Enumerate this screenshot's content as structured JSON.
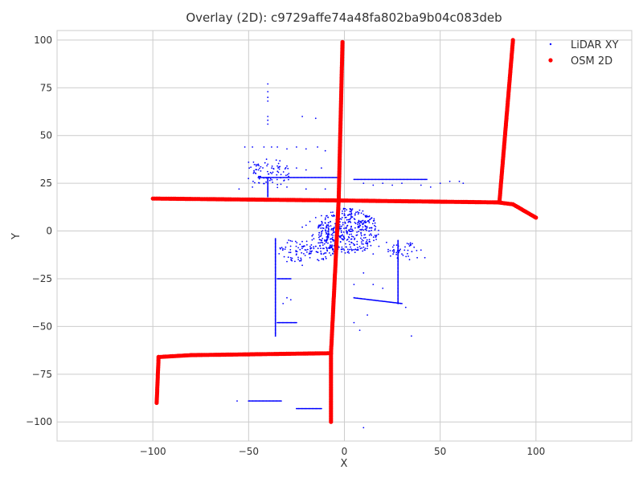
{
  "chart_data": {
    "type": "scatter",
    "title": "Overlay (2D): c9729affe74a48fa802ba9b04c083deb",
    "xlabel": "X",
    "ylabel": "Y",
    "xlim": [
      -150,
      150
    ],
    "ylim": [
      -110,
      105
    ],
    "xticks": [
      -100,
      -50,
      0,
      50,
      100
    ],
    "yticks": [
      100,
      75,
      50,
      25,
      0,
      -25,
      -50,
      -75,
      -100
    ],
    "xtick_labels": [
      "−100",
      "−50",
      "0",
      "50",
      "100"
    ],
    "ytick_labels": [
      "100",
      "75",
      "50",
      "25",
      "0",
      "−25",
      "−50",
      "−75",
      "−100"
    ],
    "grid": true,
    "legend_position": "top-right",
    "series": [
      {
        "name": "LiDAR XY",
        "color": "#0000ff",
        "marker": "small-dot",
        "segments": [
          [
            [
              -45,
              28
            ],
            [
              -2,
              28
            ]
          ],
          [
            [
              5,
              27
            ],
            [
              43,
              27
            ]
          ],
          [
            [
              -36,
              -4
            ],
            [
              -36,
              -55
            ]
          ],
          [
            [
              -5,
              -5
            ],
            [
              -5,
              -22
            ]
          ],
          [
            [
              -35,
              -48
            ],
            [
              -25,
              -48
            ]
          ],
          [
            [
              28,
              -5
            ],
            [
              28,
              -38
            ]
          ],
          [
            [
              5,
              -35
            ],
            [
              30,
              -38
            ]
          ],
          [
            [
              -50,
              -89
            ],
            [
              -33,
              -89
            ]
          ],
          [
            [
              -25,
              -93
            ],
            [
              -12,
              -93
            ]
          ],
          [
            [
              -40,
              28
            ],
            [
              -40,
              18
            ]
          ],
          [
            [
              -35,
              -25
            ],
            [
              -28,
              -25
            ]
          ]
        ],
        "points": [
          [
            -40,
            77
          ],
          [
            -40,
            73
          ],
          [
            -40,
            70
          ],
          [
            -40,
            68
          ],
          [
            -40,
            60
          ],
          [
            -40,
            58
          ],
          [
            -40,
            56
          ],
          [
            -22,
            60
          ],
          [
            -15,
            59
          ],
          [
            -52,
            44
          ],
          [
            -48,
            44
          ],
          [
            -42,
            44
          ],
          [
            -38,
            44
          ],
          [
            -35,
            44
          ],
          [
            -30,
            43
          ],
          [
            -25,
            44
          ],
          [
            -20,
            43
          ],
          [
            -14,
            44
          ],
          [
            -10,
            42
          ],
          [
            -50,
            36
          ],
          [
            -45,
            35
          ],
          [
            -40,
            35
          ],
          [
            -35,
            34
          ],
          [
            -30,
            34
          ],
          [
            -25,
            33
          ],
          [
            -20,
            32
          ],
          [
            -12,
            33
          ],
          [
            -55,
            22
          ],
          [
            -48,
            23
          ],
          [
            -40,
            22
          ],
          [
            -30,
            23
          ],
          [
            -20,
            22
          ],
          [
            -10,
            22
          ],
          [
            10,
            25
          ],
          [
            15,
            24
          ],
          [
            20,
            25
          ],
          [
            25,
            24
          ],
          [
            30,
            25
          ],
          [
            40,
            24
          ],
          [
            45,
            23
          ],
          [
            50,
            25
          ],
          [
            55,
            26
          ],
          [
            60,
            26
          ],
          [
            62,
            25
          ],
          [
            10,
            -22
          ],
          [
            5,
            -28
          ],
          [
            15,
            -28
          ],
          [
            20,
            -30
          ],
          [
            -30,
            -35
          ],
          [
            -32,
            -38
          ],
          [
            -28,
            -36
          ],
          [
            5,
            -48
          ],
          [
            8,
            -52
          ],
          [
            12,
            -44
          ],
          [
            32,
            -40
          ],
          [
            35,
            -55
          ],
          [
            -56,
            -89
          ],
          [
            10,
            -103
          ],
          [
            15,
            -12
          ],
          [
            18,
            -8
          ],
          [
            22,
            -6
          ],
          [
            30,
            -12
          ],
          [
            34,
            -15
          ],
          [
            38,
            -14
          ],
          [
            40,
            -10
          ],
          [
            42,
            -14
          ],
          [
            -20,
            -10
          ],
          [
            -25,
            -12
          ],
          [
            -28,
            -14
          ],
          [
            -30,
            -16
          ],
          [
            -22,
            -18
          ],
          [
            -18,
            -14
          ],
          [
            -15,
            -8
          ],
          [
            -12,
            -6
          ],
          [
            -18,
            5
          ],
          [
            -15,
            7
          ],
          [
            -12,
            8
          ],
          [
            -10,
            6
          ],
          [
            -20,
            3
          ],
          [
            -22,
            2
          ],
          [
            -8,
            -2
          ],
          [
            -16,
            -4
          ]
        ],
        "clusters": [
          {
            "center": [
              2,
              0
            ],
            "radius": [
              16,
              12
            ],
            "count": 420
          },
          {
            "center": [
              -12,
              -8
            ],
            "radius": [
              8,
              8
            ],
            "count": 80
          },
          {
            "center": [
              -25,
              -10
            ],
            "radius": [
              10,
              6
            ],
            "count": 60
          },
          {
            "center": [
              -40,
              30
            ],
            "radius": [
              12,
              8
            ],
            "count": 80
          },
          {
            "center": [
              30,
              -10
            ],
            "radius": [
              8,
              5
            ],
            "count": 40
          }
        ]
      },
      {
        "name": "OSM 2D",
        "color": "#ff0000",
        "marker": "dot",
        "segments": [
          [
            [
              -100,
              17
            ],
            [
              -2,
              16
            ],
            [
              80,
              15
            ],
            [
              88,
              14
            ],
            [
              100,
              7
            ]
          ],
          [
            [
              -1,
              99
            ],
            [
              -3,
              16
            ],
            [
              -7,
              -64
            ],
            [
              -7,
              -100
            ]
          ],
          [
            [
              -98,
              -90
            ],
            [
              -97,
              -66
            ],
            [
              -80,
              -65
            ],
            [
              -7,
              -64
            ]
          ],
          [
            [
              88,
              100
            ],
            [
              81,
              16
            ]
          ]
        ],
        "points": []
      }
    ]
  }
}
